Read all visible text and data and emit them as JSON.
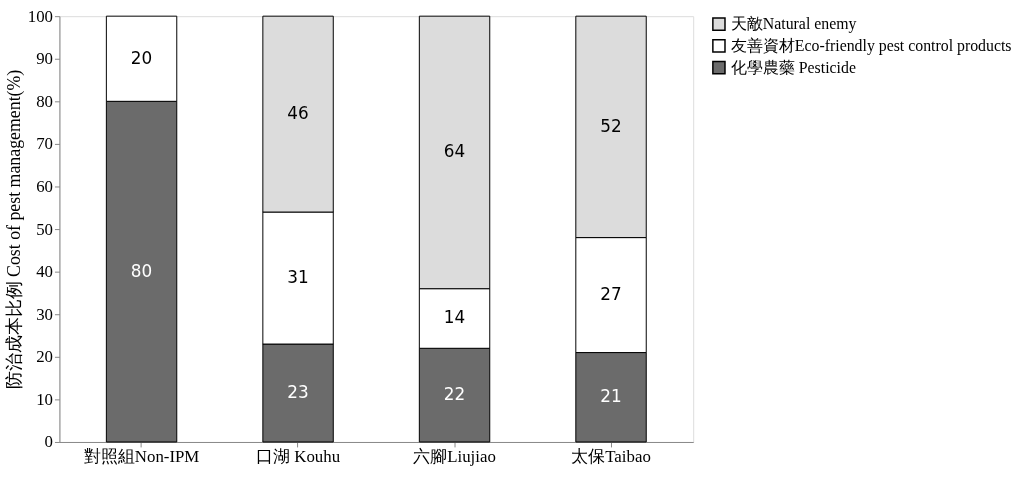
{
  "chart_data": {
    "type": "bar",
    "stacked": true,
    "ylabel": "防治成本比例 Cost of pest management(%)",
    "categories": [
      "對照組Non-IPM",
      "口湖 Kouhu",
      "六腳Liujiao",
      "太保Taibao"
    ],
    "series": [
      {
        "name": "化學農藥 Pesticide",
        "color": "#6b6b6b",
        "values": [
          80,
          23,
          22,
          21
        ]
      },
      {
        "name": "友善資材Eco-friendly pest control products",
        "color": "#ffffff",
        "values": [
          20,
          31,
          14,
          27
        ]
      },
      {
        "name": "天敵Natural enemy",
        "color": "#dcdcdc",
        "values": [
          null,
          46,
          64,
          52
        ]
      }
    ],
    "ylim": [
      0,
      100
    ],
    "yticks": [
      0,
      10,
      20,
      30,
      40,
      50,
      60,
      70,
      80,
      90,
      100
    ],
    "data_labels": true,
    "grid": false,
    "legend": "right"
  }
}
